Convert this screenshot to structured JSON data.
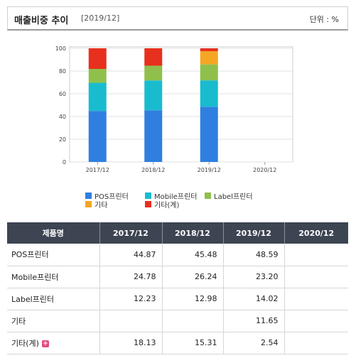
{
  "header": {
    "title": "매출비중 추이",
    "date": "[2019/12]",
    "unit": "단위 : %"
  },
  "chart_data": {
    "type": "bar",
    "stacked": true,
    "categories": [
      "2017/12",
      "2018/12",
      "2019/12",
      "2020/12"
    ],
    "ylim": [
      0,
      100
    ],
    "yticks": [
      0,
      20,
      40,
      60,
      80,
      100
    ],
    "grid": true,
    "legend_placement": "bottom",
    "series": [
      {
        "name": "POS프린터",
        "color": "#2f7fe0",
        "values": [
          44.87,
          45.48,
          48.59,
          null
        ]
      },
      {
        "name": "Mobile프린터",
        "color": "#19bccf",
        "values": [
          24.78,
          26.24,
          23.2,
          null
        ]
      },
      {
        "name": "Label프린터",
        "color": "#8fc04c",
        "values": [
          12.23,
          12.98,
          14.02,
          null
        ]
      },
      {
        "name": "기타",
        "color": "#f5a623",
        "values": [
          null,
          null,
          11.65,
          null
        ]
      },
      {
        "name": "기타(계)",
        "color": "#e8301e",
        "values": [
          18.13,
          15.31,
          2.54,
          null
        ]
      }
    ]
  },
  "table": {
    "headers": [
      "제품명",
      "2017/12",
      "2018/12",
      "2019/12",
      "2020/12"
    ],
    "rows": [
      {
        "name": "POS프린터",
        "values": [
          "44.87",
          "45.48",
          "48.59",
          ""
        ]
      },
      {
        "name": "Mobile프린터",
        "values": [
          "24.78",
          "26.24",
          "23.20",
          ""
        ]
      },
      {
        "name": "Label프린터",
        "values": [
          "12.23",
          "12.98",
          "14.02",
          ""
        ]
      },
      {
        "name": "기타",
        "values": [
          "",
          "",
          "11.65",
          ""
        ]
      },
      {
        "name": "기타(계)",
        "values": [
          "18.13",
          "15.31",
          "2.54",
          ""
        ],
        "expand_icon": "plus-icon"
      }
    ]
  }
}
